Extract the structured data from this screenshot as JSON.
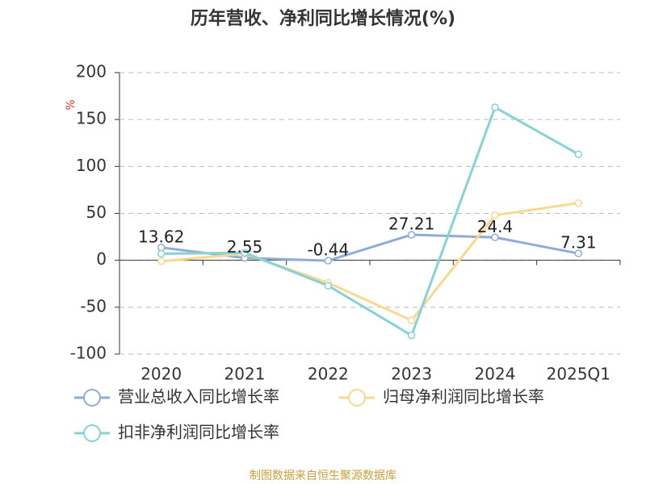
{
  "chart_data": {
    "type": "line",
    "title": "历年营收、净利同比增长情况(%)",
    "y_axis_label": "%",
    "categories": [
      "2020",
      "2021",
      "2022",
      "2023",
      "2024",
      "2025Q1"
    ],
    "series": [
      {
        "name": "营业总收入同比增长率",
        "color": "#8faadc",
        "values": [
          13.62,
          2.55,
          -0.44,
          27.21,
          24.4,
          7.31
        ],
        "show_labels": true
      },
      {
        "name": "归母净利润同比增长率",
        "color": "#fbd88e",
        "values": [
          -1,
          7,
          -24,
          -64,
          48,
          61
        ]
      },
      {
        "name": "扣非净利润同比增长率",
        "color": "#85d3d6",
        "values": [
          7,
          8,
          -27,
          -80,
          163,
          113
        ]
      }
    ],
    "ylim": [
      -100,
      200
    ],
    "yticks": [
      -100,
      -50,
      0,
      50,
      100,
      150,
      200
    ],
    "grid": true,
    "source": "制图数据来自恒生聚源数据库"
  }
}
